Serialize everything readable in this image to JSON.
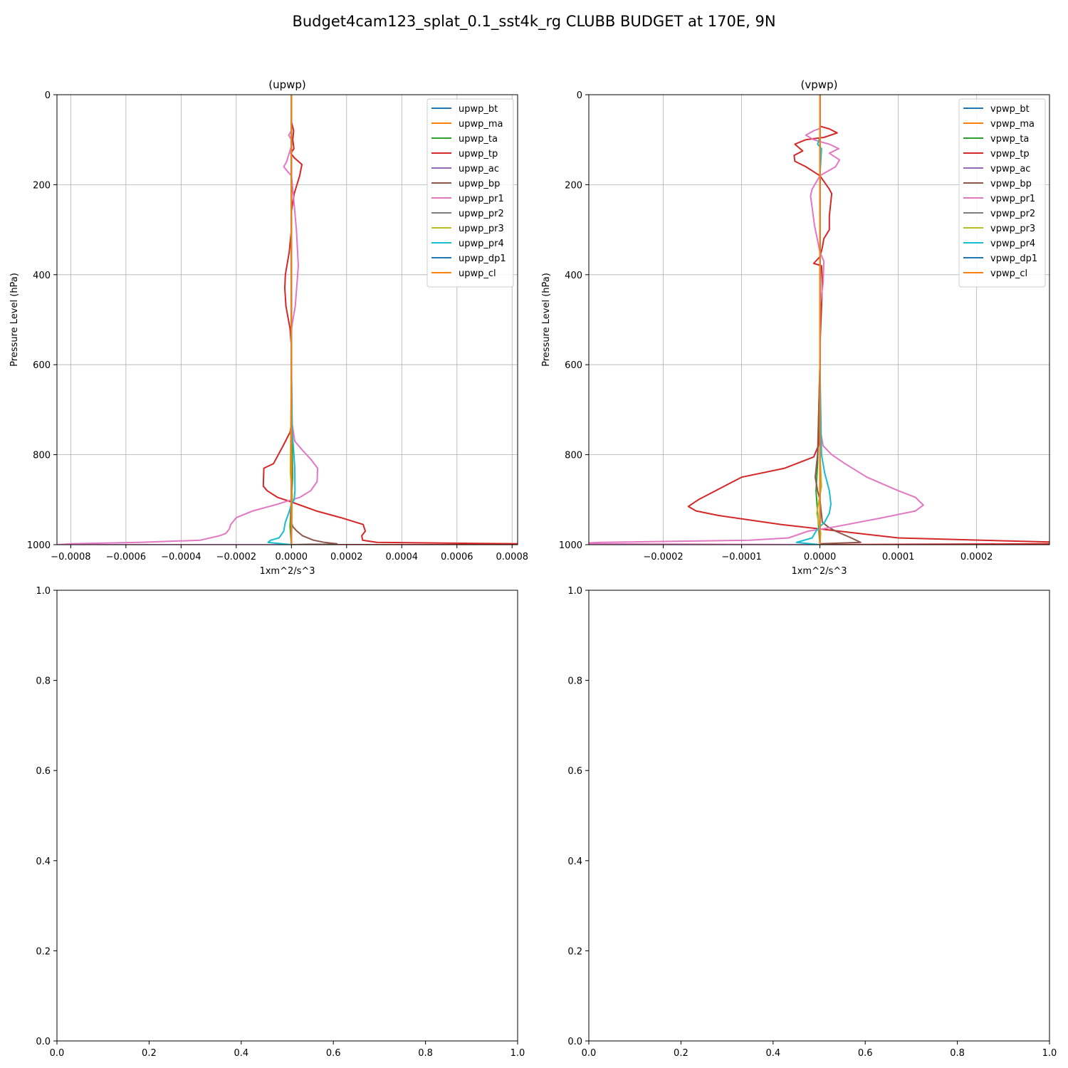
{
  "figure": {
    "suptitle": "Budget4cam123_splat_0.1_sst4k_rg CLUBB BUDGET at 170E, 9N"
  },
  "colors": {
    "bt": "#1f77b4",
    "ma": "#ff7f0e",
    "ta": "#2ca02c",
    "tp": "#d62728",
    "ac": "#9467bd",
    "bp": "#8c564b",
    "pr1": "#e377c2",
    "pr2": "#7f7f7f",
    "pr3": "#bcbd22",
    "pr4": "#17becf",
    "dp1": "#1f77b4",
    "cl": "#ff7f0e",
    "grid": "#b0b0b0"
  },
  "chart_data": [
    {
      "type": "line",
      "title": "(upwp)",
      "xlabel": "1xm^2/s^3",
      "ylabel": "Pressure Level (hPa)",
      "xlim": [
        -0.00085,
        0.00082
      ],
      "ylim": [
        1000,
        0
      ],
      "xticks": [
        -0.0008,
        -0.0006,
        -0.0004,
        -0.0002,
        0.0,
        0.0002,
        0.0004,
        0.0006,
        0.0008
      ],
      "xtick_labels": [
        "−0.0008",
        "−0.0006",
        "−0.0004",
        "−0.0002",
        "0.0000",
        "0.0002",
        "0.0004",
        "0.0006",
        "0.0008"
      ],
      "yticks": [
        0,
        200,
        400,
        600,
        800,
        1000
      ],
      "ytick_labels": [
        "0",
        "200",
        "400",
        "600",
        "800",
        "1000"
      ],
      "grid": true,
      "legend_position": "upper right",
      "series": [
        {
          "name": "upwp_bt",
          "key": "bt",
          "x": [
            0,
            0,
            0,
            0,
            0
          ],
          "y": [
            0,
            300,
            600,
            900,
            1000
          ]
        },
        {
          "name": "upwp_ma",
          "key": "ma",
          "x": [
            0,
            0,
            0,
            0,
            0
          ],
          "y": [
            0,
            300,
            600,
            900,
            1000
          ]
        },
        {
          "name": "upwp_ta",
          "key": "ta",
          "x": [
            0,
            0,
            0,
            4e-06,
            -5e-06,
            0
          ],
          "y": [
            0,
            300,
            600,
            850,
            960,
            1000
          ]
        },
        {
          "name": "upwp_tp",
          "key": "tp",
          "x": [
            0,
            0,
            8e-06,
            5e-06,
            9e-06,
            -2e-06,
            4e-06,
            1e-05,
            3.8e-05,
            3e-05,
            1e-05,
            0,
            0,
            -8e-06,
            -2.2e-05,
            -2.4e-05,
            -2e-05,
            -5e-06,
            0,
            0,
            0,
            -5e-06,
            -3e-05,
            -6.5e-05,
            -0.0001,
            -0.000102,
            -8.8e-05,
            -5e-05,
            0,
            9e-05,
            0.00018,
            0.00026,
            0.000268,
            0.000255,
            0.000258,
            0.00031,
            0.00082,
            0.00082,
            0
          ],
          "y": [
            0,
            60,
            80,
            100,
            120,
            130,
            135,
            140,
            155,
            180,
            220,
            260,
            300,
            350,
            400,
            430,
            470,
            520,
            560,
            620,
            730,
            750,
            780,
            820,
            830,
            870,
            880,
            895,
            905,
            925,
            940,
            955,
            970,
            980,
            990,
            995,
            998,
            1000,
            1000
          ]
        },
        {
          "name": "upwp_ac",
          "key": "ac",
          "x": [
            0,
            0,
            0,
            0,
            0
          ],
          "y": [
            0,
            300,
            600,
            900,
            1000
          ]
        },
        {
          "name": "upwp_bp",
          "key": "bp",
          "x": [
            0,
            0,
            0,
            0,
            0,
            -3e-06,
            0,
            5e-06,
            2e-05,
            4e-05,
            8e-05,
            0.00012,
            0.000165,
            0,
            0
          ],
          "y": [
            0,
            300,
            600,
            800,
            900,
            930,
            950,
            960,
            970,
            980,
            990,
            995,
            998,
            1000,
            1000
          ]
        },
        {
          "name": "upwp_pr1",
          "key": "pr1",
          "x": [
            0,
            0,
            0,
            -1e-05,
            0,
            2e-06,
            -1.8e-05,
            -2.8e-05,
            -1.5e-05,
            0,
            8e-06,
            1.8e-05,
            2.5e-05,
            2e-05,
            1.4e-05,
            0,
            0,
            1.2e-05,
            4e-05,
            7e-05,
            9.5e-05,
            9.3e-05,
            7e-05,
            3e-05,
            -5e-05,
            -0.00014,
            -0.0002,
            -0.00022,
            -0.000225,
            -0.000238,
            -0.00026,
            -0.00033,
            -0.00055,
            -0.0008,
            -0.00085,
            0
          ],
          "y": [
            0,
            60,
            80,
            90,
            100,
            110,
            150,
            160,
            170,
            180,
            230,
            300,
            380,
            420,
            470,
            520,
            720,
            770,
            790,
            810,
            830,
            860,
            880,
            895,
            910,
            925,
            940,
            955,
            965,
            975,
            980,
            990,
            995,
            998,
            1000,
            1000
          ]
        },
        {
          "name": "upwp_pr2",
          "key": "pr2",
          "x": [
            0,
            0,
            0,
            0,
            0
          ],
          "y": [
            0,
            300,
            600,
            900,
            1000
          ]
        },
        {
          "name": "upwp_pr3",
          "key": "pr3",
          "x": [
            0,
            0,
            0,
            -4e-06,
            3e-06,
            0
          ],
          "y": [
            0,
            300,
            600,
            840,
            890,
            1000
          ]
        },
        {
          "name": "upwp_pr4",
          "key": "pr4",
          "x": [
            0,
            0,
            0,
            3e-06,
            8e-06,
            1.2e-05,
            1.3e-05,
            1e-05,
            0,
            -1e-05,
            -2.2e-05,
            -2.5e-05,
            -2.8e-05,
            -4.5e-05,
            -7.5e-05,
            -8.5e-05,
            0
          ],
          "y": [
            0,
            300,
            600,
            750,
            790,
            830,
            880,
            900,
            910,
            930,
            950,
            960,
            970,
            985,
            990,
            995,
            1000
          ]
        },
        {
          "name": "upwp_dp1",
          "key": "dp1",
          "x": [
            0,
            0,
            0,
            0,
            0
          ],
          "y": [
            0,
            300,
            600,
            900,
            1000
          ]
        },
        {
          "name": "upwp_cl",
          "key": "cl",
          "x": [
            0,
            0,
            0,
            0,
            0
          ],
          "y": [
            0,
            300,
            600,
            900,
            1000
          ]
        }
      ]
    },
    {
      "type": "line",
      "title": "(vpwp)",
      "xlabel": "1xm^2/s^3",
      "ylabel": "Pressure Level (hPa)",
      "xlim": [
        -0.000295,
        0.000293
      ],
      "ylim": [
        1000,
        0
      ],
      "xticks": [
        -0.0002,
        -0.0001,
        0.0,
        0.0001,
        0.0002
      ],
      "xtick_labels": [
        "−0.0002",
        "−0.0001",
        "0.0000",
        "0.0001",
        "0.0002"
      ],
      "yticks": [
        0,
        200,
        400,
        600,
        800,
        1000
      ],
      "ytick_labels": [
        "0",
        "200",
        "400",
        "600",
        "800",
        "1000"
      ],
      "grid": true,
      "legend_position": "upper right",
      "series": [
        {
          "name": "vpwp_bt",
          "key": "bt",
          "x": [
            0,
            0,
            0,
            0,
            0
          ],
          "y": [
            0,
            300,
            600,
            900,
            1000
          ]
        },
        {
          "name": "vpwp_ma",
          "key": "ma",
          "x": [
            0,
            0,
            0,
            0,
            0
          ],
          "y": [
            0,
            300,
            600,
            900,
            1000
          ]
        },
        {
          "name": "vpwp_ta",
          "key": "ta",
          "x": [
            0,
            0,
            0,
            -3e-06,
            -5e-06,
            0
          ],
          "y": [
            0,
            300,
            600,
            820,
            880,
            1000
          ]
        },
        {
          "name": "vpwp_tp",
          "key": "tp",
          "x": [
            0,
            0,
            0,
            1.2e-05,
            2.2e-05,
            5e-06,
            -1.8e-05,
            -3.2e-05,
            -2.2e-05,
            -3.3e-05,
            -3.2e-05,
            -1.8e-05,
            0,
            1.2e-05,
            1.5e-05,
            1.2e-05,
            1.2e-05,
            5e-06,
            3e-06,
            0,
            -8e-06,
            2e-06,
            3e-06,
            2e-06,
            0,
            0,
            0,
            -2e-06,
            -8e-06,
            -4.5e-05,
            -0.0001,
            -0.000155,
            -0.000168,
            -0.000158,
            -0.00013,
            -5e-05,
            0,
            5e-05,
            0.0001,
            0.00031,
            0.00031,
            0
          ],
          "y": [
            0,
            40,
            70,
            76,
            85,
            95,
            100,
            110,
            125,
            135,
            148,
            160,
            180,
            210,
            220,
            270,
            300,
            320,
            340,
            360,
            375,
            380,
            420,
            470,
            560,
            650,
            740,
            780,
            805,
            830,
            850,
            900,
            915,
            925,
            935,
            955,
            965,
            975,
            985,
            995,
            998,
            1000
          ]
        },
        {
          "name": "vpwp_ac",
          "key": "ac",
          "x": [
            0,
            0,
            0,
            0,
            0
          ],
          "y": [
            0,
            300,
            600,
            900,
            1000
          ]
        },
        {
          "name": "vpwp_bp",
          "key": "bp",
          "x": [
            0,
            0,
            0,
            -3e-06,
            -6e-06,
            -3e-06,
            0,
            3e-06,
            1e-05,
            2e-05,
            4e-05,
            5.2e-05,
            0,
            0
          ],
          "y": [
            0,
            300,
            600,
            800,
            850,
            880,
            900,
            950,
            960,
            970,
            985,
            995,
            998,
            1000
          ]
        },
        {
          "name": "vpwp_pr1",
          "key": "pr1",
          "x": [
            0,
            0,
            0,
            -8e-06,
            -1.8e-05,
            -8e-06,
            2e-06,
            1.2e-05,
            2.4e-05,
            1.2e-05,
            2.5e-05,
            2e-05,
            0,
            -1e-05,
            -1.2e-05,
            -1e-05,
            -7e-06,
            0,
            5e-06,
            4e-06,
            0,
            0,
            0,
            4e-06,
            1.5e-05,
            3.2e-05,
            6e-05,
            0.0001,
            0.000122,
            0.000132,
            0.000122,
            8e-05,
            2e-05,
            -1.5e-05,
            -4e-05,
            -9e-05,
            -0.00028,
            -0.00032,
            0
          ],
          "y": [
            0,
            60,
            75,
            80,
            90,
            100,
            105,
            110,
            120,
            130,
            145,
            160,
            180,
            210,
            225,
            250,
            290,
            350,
            370,
            420,
            470,
            560,
            740,
            780,
            800,
            820,
            850,
            880,
            895,
            912,
            925,
            940,
            960,
            970,
            985,
            990,
            995,
            998,
            1000
          ]
        },
        {
          "name": "vpwp_pr2",
          "key": "pr2",
          "x": [
            0,
            0,
            0,
            0,
            0
          ],
          "y": [
            0,
            300,
            600,
            900,
            1000
          ]
        },
        {
          "name": "vpwp_pr3",
          "key": "pr3",
          "x": [
            0,
            0,
            0,
            0,
            2e-06,
            -4e-06,
            1e-06,
            0
          ],
          "y": [
            0,
            300,
            600,
            800,
            870,
            930,
            975,
            1000
          ]
        },
        {
          "name": "vpwp_pr4",
          "key": "pr4",
          "x": [
            0,
            0,
            0,
            -3e-06,
            2e-06,
            1e-06,
            0,
            0,
            2e-06,
            6e-06,
            1.2e-05,
            1.4e-05,
            1.2e-05,
            6e-06,
            0,
            -5e-06,
            -1e-05,
            -3e-05,
            0
          ],
          "y": [
            0,
            75,
            95,
            110,
            120,
            150,
            180,
            600,
            800,
            840,
            880,
            910,
            930,
            950,
            960,
            970,
            985,
            995,
            1000
          ]
        },
        {
          "name": "vpwp_dp1",
          "key": "dp1",
          "x": [
            0,
            0,
            0,
            0,
            0
          ],
          "y": [
            0,
            300,
            600,
            900,
            1000
          ]
        },
        {
          "name": "vpwp_cl",
          "key": "cl",
          "x": [
            0,
            0,
            0,
            0,
            0
          ],
          "y": [
            0,
            300,
            600,
            900,
            1000
          ]
        }
      ]
    },
    {
      "type": "line",
      "title": "",
      "xlim": [
        0,
        1
      ],
      "ylim": [
        0,
        1
      ],
      "xticks": [
        0.0,
        0.2,
        0.4,
        0.6,
        0.8,
        1.0
      ],
      "xtick_labels": [
        "0.0",
        "0.2",
        "0.4",
        "0.6",
        "0.8",
        "1.0"
      ],
      "yticks": [
        0.0,
        0.2,
        0.4,
        0.6,
        0.8,
        1.0
      ],
      "ytick_labels": [
        "0.0",
        "0.2",
        "0.4",
        "0.6",
        "0.8",
        "1.0"
      ],
      "grid": false,
      "series": []
    },
    {
      "type": "line",
      "title": "",
      "xlim": [
        0,
        1
      ],
      "ylim": [
        0,
        1
      ],
      "xticks": [
        0.0,
        0.2,
        0.4,
        0.6,
        0.8,
        1.0
      ],
      "xtick_labels": [
        "0.0",
        "0.2",
        "0.4",
        "0.6",
        "0.8",
        "1.0"
      ],
      "yticks": [
        0.0,
        0.2,
        0.4,
        0.6,
        0.8,
        1.0
      ],
      "ytick_labels": [
        "0.0",
        "0.2",
        "0.4",
        "0.6",
        "0.8",
        "1.0"
      ],
      "grid": false,
      "series": []
    }
  ]
}
